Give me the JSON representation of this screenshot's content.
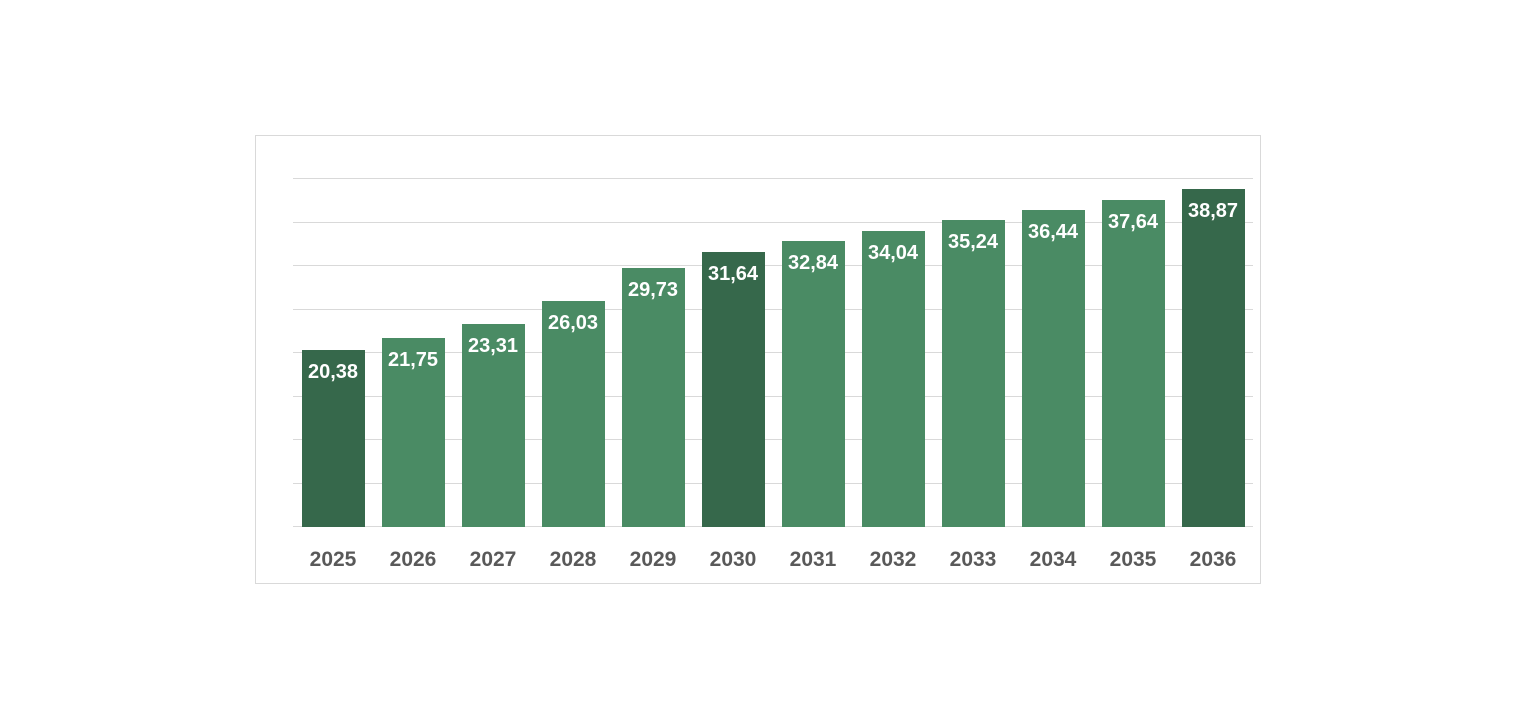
{
  "chart_data": {
    "type": "bar",
    "title": "",
    "xlabel": "",
    "ylabel": "",
    "categories": [
      "2025",
      "2026",
      "2027",
      "2028",
      "2029",
      "2030",
      "2031",
      "2032",
      "2033",
      "2034",
      "2035",
      "2036"
    ],
    "values": [
      20.38,
      21.75,
      23.31,
      26.03,
      29.73,
      31.64,
      32.84,
      34.04,
      35.24,
      36.44,
      37.64,
      38.87
    ],
    "value_labels": [
      "20,38",
      "21,75",
      "23,31",
      "26,03",
      "29,73",
      "31,64",
      "32,84",
      "34,04",
      "35,24",
      "36,44",
      "37,64",
      "38,87"
    ],
    "decimal_separator": ",",
    "ylim": [
      0,
      40
    ],
    "gridline_step": 5,
    "grid": true,
    "legend": false,
    "highlight_indices": [
      0,
      5,
      11
    ],
    "colors": {
      "bar": "#4a8b64",
      "bar_highlight": "#36684b",
      "data_label": "#ffffff",
      "axis_label": "#595959",
      "gridline": "#d9d9d9",
      "axis_line": "#d9d9d9",
      "chart_border": "#d9d9d9",
      "background": "#ffffff"
    }
  }
}
